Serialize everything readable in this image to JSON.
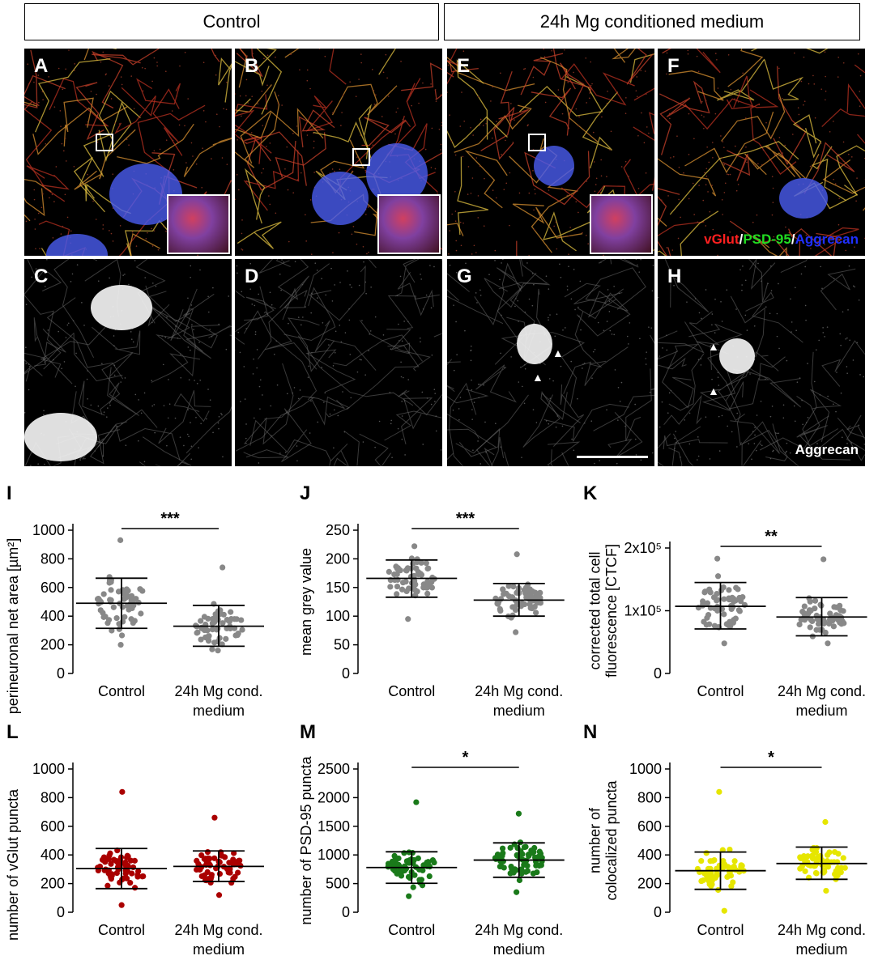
{
  "headers": {
    "control": "Control",
    "mg": "24h Mg conditioned medium"
  },
  "panels": [
    {
      "id": "A",
      "letter": "A",
      "kind": "color",
      "inset": true
    },
    {
      "id": "B",
      "letter": "B",
      "kind": "color",
      "inset": true
    },
    {
      "id": "E",
      "letter": "E",
      "kind": "color",
      "inset": true
    },
    {
      "id": "F",
      "letter": "F",
      "kind": "color",
      "inset": false
    },
    {
      "id": "C",
      "letter": "C",
      "kind": "gray"
    },
    {
      "id": "D",
      "letter": "D",
      "kind": "gray"
    },
    {
      "id": "G",
      "letter": "G",
      "kind": "gray"
    },
    {
      "id": "H",
      "letter": "H",
      "kind": "gray"
    }
  ],
  "stain_legend": {
    "vglut": "vGlut",
    "sep1": "/",
    "psd95": "PSD-95",
    "sep2": "/",
    "aggrecan": "Aggrecan",
    "colors": {
      "vglut": "#ff2020",
      "psd95": "#22dd22",
      "aggrecan": "#2030ff"
    }
  },
  "aggrecan_label": "Aggrecan",
  "chart_data": [
    {
      "id": "I",
      "letter": "I",
      "type": "scatter",
      "ylabel": "perineuronal net area [µm²]",
      "ylim": [
        0,
        1000
      ],
      "yticks": [
        0,
        200,
        400,
        600,
        800,
        1000
      ],
      "ytick_labels": [
        "0",
        "200",
        "400",
        "600",
        "800",
        "1000"
      ],
      "categories": [
        "Control",
        "24h Mg cond. medium"
      ],
      "cat_lines": [
        [
          "Control"
        ],
        [
          "24h Mg cond.",
          "medium"
        ]
      ],
      "color": "#888888",
      "sig": "***",
      "groups": [
        {
          "mean": 490,
          "sd_low": 315,
          "sd_high": 665,
          "min": 200,
          "max": 930
        },
        {
          "mean": 330,
          "sd_low": 190,
          "sd_high": 475,
          "min": 160,
          "max": 740
        }
      ]
    },
    {
      "id": "J",
      "letter": "J",
      "type": "scatter",
      "ylabel": "mean grey value",
      "ylim": [
        0,
        250
      ],
      "yticks": [
        0,
        50,
        100,
        150,
        200,
        250
      ],
      "ytick_labels": [
        "0",
        "50",
        "100",
        "150",
        "200",
        "250"
      ],
      "categories": [
        "Control",
        "24h Mg cond. medium"
      ],
      "cat_lines": [
        [
          "Control"
        ],
        [
          "24h Mg cond.",
          "medium"
        ]
      ],
      "color": "#888888",
      "sig": "***",
      "groups": [
        {
          "mean": 166,
          "sd_low": 133,
          "sd_high": 198,
          "min": 95,
          "max": 222
        },
        {
          "mean": 128,
          "sd_low": 100,
          "sd_high": 157,
          "min": 72,
          "max": 208
        }
      ]
    },
    {
      "id": "K",
      "letter": "K",
      "type": "scatter",
      "ylabel": "corrected total cell fluorescence [CTCF]",
      "ylim": [
        0,
        200000
      ],
      "yticks": [
        0,
        100000,
        200000
      ],
      "ytick_labels": [
        "0",
        "1x10⁵",
        "2x10⁵"
      ],
      "categories": [
        "Control",
        "24h Mg cond. medium"
      ],
      "cat_lines": [
        [
          "Control"
        ],
        [
          "24h Mg cond.",
          "medium"
        ]
      ],
      "color": "#888888",
      "sig": "**",
      "groups": [
        {
          "mean": 107000,
          "sd_low": 71000,
          "sd_high": 145000,
          "min": 48000,
          "max": 183000
        },
        {
          "mean": 90000,
          "sd_low": 60000,
          "sd_high": 121000,
          "min": 48000,
          "max": 182000
        }
      ]
    },
    {
      "id": "L",
      "letter": "L",
      "type": "scatter",
      "ylabel": "number of vGlut puncta",
      "ylim": [
        0,
        1000
      ],
      "yticks": [
        0,
        200,
        400,
        600,
        800,
        1000
      ],
      "ytick_labels": [
        "0",
        "200",
        "400",
        "600",
        "800",
        "1000"
      ],
      "categories": [
        "Control",
        "24h Mg cond. medium"
      ],
      "cat_lines": [
        [
          "Control"
        ],
        [
          "24h Mg cond.",
          "medium"
        ]
      ],
      "color": "#aa0000",
      "sig": "",
      "groups": [
        {
          "mean": 305,
          "sd_low": 165,
          "sd_high": 445,
          "min": 50,
          "max": 840
        },
        {
          "mean": 320,
          "sd_low": 215,
          "sd_high": 428,
          "min": 120,
          "max": 660
        }
      ]
    },
    {
      "id": "M",
      "letter": "M",
      "type": "scatter",
      "ylabel": "number of PSD-95 puncta",
      "ylim": [
        0,
        2500
      ],
      "yticks": [
        0,
        500,
        1000,
        1500,
        2000,
        2500
      ],
      "ytick_labels": [
        "0",
        "500",
        "1000",
        "1500",
        "2000",
        "2500"
      ],
      "categories": [
        "Control",
        "24h Mg cond. medium"
      ],
      "cat_lines": [
        [
          "Control"
        ],
        [
          "24h Mg cond.",
          "medium"
        ]
      ],
      "color": "#1a7a1a",
      "sig": "*",
      "groups": [
        {
          "mean": 780,
          "sd_low": 505,
          "sd_high": 1055,
          "min": 280,
          "max": 1920
        },
        {
          "mean": 910,
          "sd_low": 610,
          "sd_high": 1210,
          "min": 350,
          "max": 1720
        }
      ]
    },
    {
      "id": "N",
      "letter": "N",
      "type": "scatter",
      "ylabel": "number of colocalized puncta",
      "ylim": [
        0,
        1000
      ],
      "yticks": [
        0,
        200,
        400,
        600,
        800,
        1000
      ],
      "ytick_labels": [
        "0",
        "200",
        "400",
        "600",
        "800",
        "1000"
      ],
      "categories": [
        "Control",
        "24h Mg cond. medium"
      ],
      "cat_lines": [
        [
          "Control"
        ],
        [
          "24h Mg cond.",
          "medium"
        ]
      ],
      "color": "#e6e600",
      "sig": "*",
      "groups": [
        {
          "mean": 290,
          "sd_low": 160,
          "sd_high": 420,
          "min": 10,
          "max": 840
        },
        {
          "mean": 340,
          "sd_low": 230,
          "sd_high": 455,
          "min": 150,
          "max": 630
        }
      ]
    }
  ]
}
